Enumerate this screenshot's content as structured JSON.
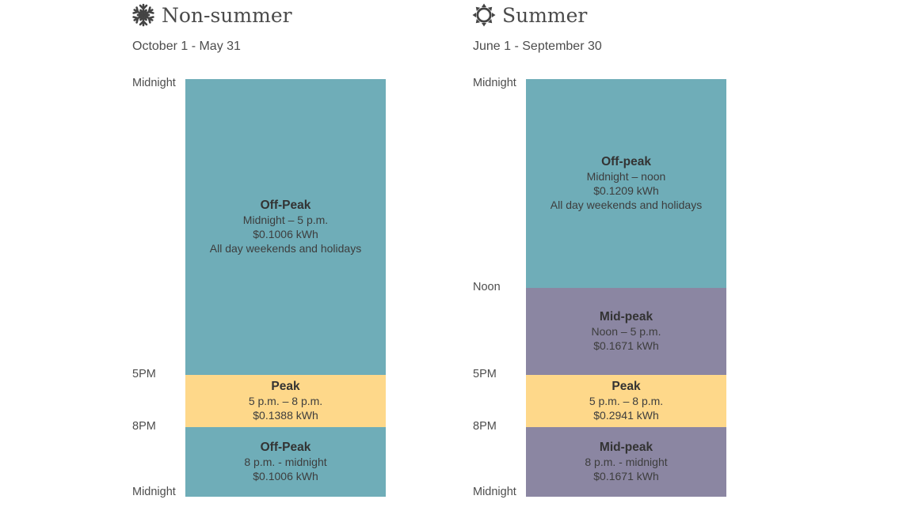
{
  "colors": {
    "off_peak": "#6fadb8",
    "peak": "#fed88a",
    "mid_peak": "#8b86a2"
  },
  "panels": [
    {
      "title": "Non-summer",
      "icon": "snowflake-icon",
      "date_range": "October 1 - May 31",
      "time_labels": [
        {
          "text": "Midnight",
          "hour": 0
        },
        {
          "text": "5PM",
          "hour": 17
        },
        {
          "text": "8PM",
          "hour": 20
        },
        {
          "text": "Midnight",
          "hour": 24
        }
      ],
      "segments": [
        {
          "kind": "off_peak",
          "name": "Off-Peak",
          "start": 0,
          "end": 17,
          "lines": [
            "Midnight – 5 p.m.",
            "$0.1006 kWh",
            "All day weekends and holidays"
          ]
        },
        {
          "kind": "peak",
          "name": "Peak",
          "start": 17,
          "end": 20,
          "lines": [
            "5 p.m. – 8 p.m.",
            "$0.1388 kWh"
          ]
        },
        {
          "kind": "off_peak",
          "name": "Off-Peak",
          "start": 20,
          "end": 24,
          "lines": [
            "8 p.m. - midnight",
            "$0.1006 kWh"
          ]
        }
      ]
    },
    {
      "title": "Summer",
      "icon": "sun-icon",
      "date_range": "June 1 - September 30",
      "time_labels": [
        {
          "text": "Midnight",
          "hour": 0
        },
        {
          "text": "Noon",
          "hour": 12
        },
        {
          "text": "5PM",
          "hour": 17
        },
        {
          "text": "8PM",
          "hour": 20
        },
        {
          "text": "Midnight",
          "hour": 24
        }
      ],
      "segments": [
        {
          "kind": "off_peak",
          "name": "Off-peak",
          "start": 0,
          "end": 12,
          "lines": [
            "Midnight – noon",
            "$0.1209 kWh",
            "All day weekends and holidays"
          ]
        },
        {
          "kind": "mid_peak",
          "name": "Mid-peak",
          "start": 12,
          "end": 17,
          "lines": [
            "Noon – 5 p.m.",
            "$0.1671 kWh"
          ]
        },
        {
          "kind": "peak",
          "name": "Peak",
          "start": 17,
          "end": 20,
          "lines": [
            "5 p.m. – 8 p.m.",
            "$0.2941 kWh"
          ]
        },
        {
          "kind": "mid_peak",
          "name": "Mid-peak",
          "start": 20,
          "end": 24,
          "lines": [
            "8 p.m. - midnight",
            "$0.1671 kWh"
          ]
        }
      ]
    }
  ]
}
